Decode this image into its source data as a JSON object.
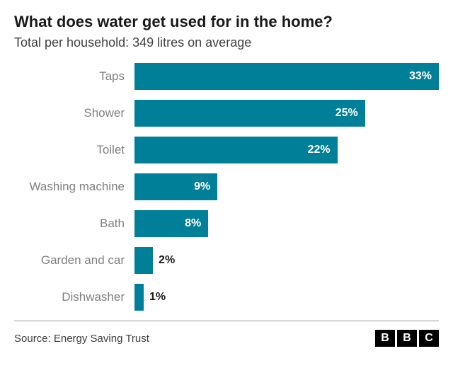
{
  "title": "What does water get used for in the home?",
  "subtitle": "Total per household: 349 litres on average",
  "title_fontsize": 22,
  "subtitle_fontsize": 18,
  "category_fontsize": 17,
  "value_fontsize": 16,
  "source_fontsize": 15,
  "bar_color": "#007f99",
  "bar_max_percent": 33,
  "categories": [
    {
      "label": "Taps",
      "value": 33,
      "display": "33%",
      "label_inside": true
    },
    {
      "label": "Shower",
      "value": 25,
      "display": "25%",
      "label_inside": true
    },
    {
      "label": "Toilet",
      "value": 22,
      "display": "22%",
      "label_inside": true
    },
    {
      "label": "Washing machine",
      "value": 9,
      "display": "9%",
      "label_inside": true
    },
    {
      "label": "Bath",
      "value": 8,
      "display": "8%",
      "label_inside": true
    },
    {
      "label": "Garden and car",
      "value": 2,
      "display": "2%",
      "label_inside": false
    },
    {
      "label": "Dishwasher",
      "value": 1,
      "display": "1%",
      "label_inside": false
    }
  ],
  "source": "Source: Energy Saving Trust",
  "logo": [
    "B",
    "B",
    "C"
  ]
}
